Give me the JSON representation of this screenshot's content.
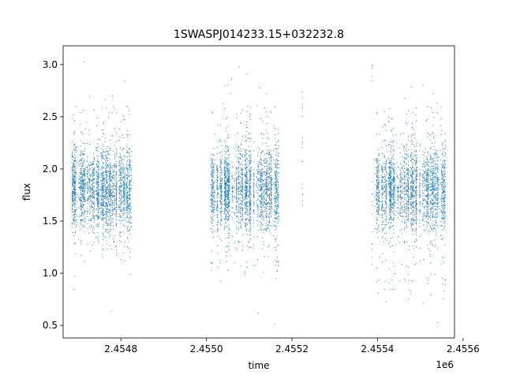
{
  "chart_data": {
    "type": "scatter",
    "title": "1SWASPJ014233.15+032232.8",
    "xlabel": "time",
    "ylabel": "flux",
    "x_offset_label": "1e6",
    "xlim": [
      2454665,
      2455580
    ],
    "ylim": [
      0.38,
      3.18
    ],
    "xticks": [
      2.4548,
      2.455,
      2.4552,
      2.4554,
      2.4556
    ],
    "xtick_labels": [
      "2.4548",
      "2.4550",
      "2.4552",
      "2.4554",
      "2.4556"
    ],
    "yticks": [
      0.5,
      1.0,
      1.5,
      2.0,
      2.5,
      3.0
    ],
    "ytick_labels": [
      "0.5",
      "1.0",
      "1.5",
      "2.0",
      "2.5",
      "3.0"
    ],
    "grid": false,
    "legend": "none",
    "marker_color": "#1f77b4",
    "season_ranges": [
      {
        "x": [
          2454685,
          2454825
        ],
        "center": 1.8,
        "low": 1.1,
        "high": 2.6
      },
      {
        "x": [
          2455010,
          2455170
        ],
        "center": 1.8,
        "low": 0.9,
        "high": 2.6
      },
      {
        "x": [
          2455395,
          2455560
        ],
        "center": 1.8,
        "low": 0.7,
        "high": 2.6
      }
    ],
    "outlier_ranges": {
      "low": 0.5,
      "high": 3.05
    }
  }
}
